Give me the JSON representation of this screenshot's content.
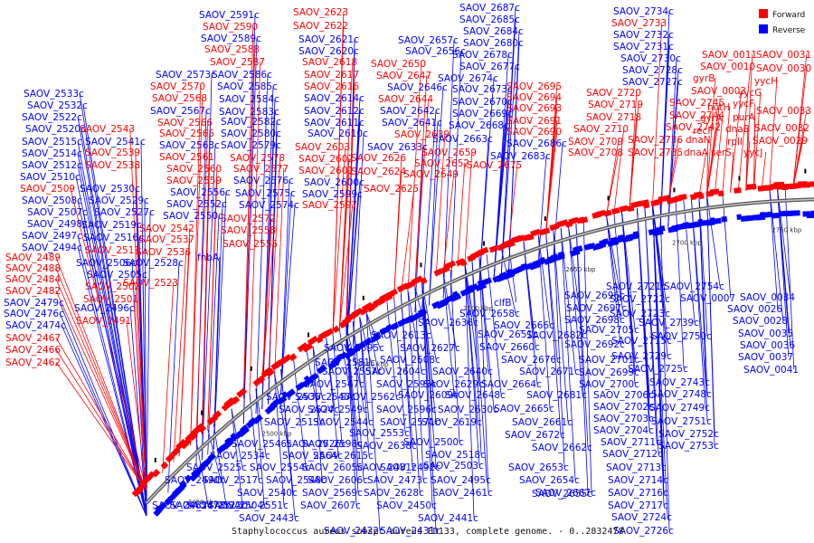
{
  "legend": {
    "forward_label": "Forward",
    "reverse_label": "Reverse",
    "forward_color": "#ff0000",
    "reverse_color": "#0000ff"
  },
  "caption": "Staphylococcus aureus subsp. aureus ED133, complete genome. - 0..2832478",
  "colors": {
    "backbone": "#999999",
    "label_forward": "#ff0000",
    "label_reverse": "#0000ff",
    "marker": "#000000"
  },
  "ticks": [
    "2450 kbp",
    "2500 kbp",
    "2550 kbp",
    "2600 kbp",
    "2650 kbp",
    "2700 kbp",
    "2750 kbp",
    "2800 kbp",
    "50 kbp"
  ],
  "labels": [
    {
      "text": "SAOV_2533c",
      "s": "r"
    },
    {
      "text": "SAOV_2532c",
      "s": "r"
    },
    {
      "text": "SAOV_2522c",
      "s": "r"
    },
    {
      "text": "SAOV_2520c",
      "s": "r"
    },
    {
      "text": "SAOV_2515c",
      "s": "r"
    },
    {
      "text": "SAOV_2514c",
      "s": "r"
    },
    {
      "text": "SAOV_2512c",
      "s": "r"
    },
    {
      "text": "SAOV_2510c",
      "s": "r"
    },
    {
      "text": "SAOV_2509",
      "s": "f"
    },
    {
      "text": "SAOV_2508c",
      "s": "r"
    },
    {
      "text": "SAOV_2507c",
      "s": "r"
    },
    {
      "text": "SAOV_2498c",
      "s": "r"
    },
    {
      "text": "SAOV_2497c",
      "s": "r"
    },
    {
      "text": "SAOV_2494c",
      "s": "r"
    },
    {
      "text": "SAOV_2489",
      "s": "f"
    },
    {
      "text": "SAOV_2488",
      "s": "f"
    },
    {
      "text": "SAOV_2484",
      "s": "f"
    },
    {
      "text": "SAOV_2482",
      "s": "f"
    },
    {
      "text": "SAOV_2479c",
      "s": "r"
    },
    {
      "text": "SAOV_2476c",
      "s": "r"
    },
    {
      "text": "SAOV_2474c",
      "s": "r"
    },
    {
      "text": "SAOV_2467",
      "s": "f"
    },
    {
      "text": "SAOV_2466",
      "s": "f"
    },
    {
      "text": "SAOV_2462",
      "s": "f"
    },
    {
      "text": "SAOV_2543",
      "s": "f"
    },
    {
      "text": "SAOV_2541c",
      "s": "r"
    },
    {
      "text": "SAOV_2539",
      "s": "f"
    },
    {
      "text": "SAOV_2538",
      "s": "f"
    },
    {
      "text": "SAOV_2530c",
      "s": "r"
    },
    {
      "text": "SAOV_2529c",
      "s": "r"
    },
    {
      "text": "SAOV_2527c",
      "s": "r"
    },
    {
      "text": "SAOV_2519c",
      "s": "r"
    },
    {
      "text": "SAOV_2516c",
      "s": "r"
    },
    {
      "text": "SAOV_2511",
      "s": "f"
    },
    {
      "text": "SAOV_2506c",
      "s": "r"
    },
    {
      "text": "SAOV_2505c",
      "s": "r"
    },
    {
      "text": "SAOV_2502",
      "s": "f"
    },
    {
      "text": "SAOV_2501",
      "s": "f"
    },
    {
      "text": "SAOV_2496c",
      "s": "r"
    },
    {
      "text": "SAOV_2491",
      "s": "f"
    },
    {
      "text": "SAOV_2542",
      "s": "f"
    },
    {
      "text": "SAOV_2537",
      "s": "f"
    },
    {
      "text": "SAOV_2536",
      "s": "f"
    },
    {
      "text": "SAOV_2528c",
      "s": "r"
    },
    {
      "text": "SAOV_2523",
      "s": "f"
    },
    {
      "text": "SAOV_2591c",
      "s": "r"
    },
    {
      "text": "SAOV_2590",
      "s": "f"
    },
    {
      "text": "SAOV_2589c",
      "s": "r"
    },
    {
      "text": "SAOV_2588",
      "s": "f"
    },
    {
      "text": "SAOV_2587",
      "s": "f"
    },
    {
      "text": "SAOV_2586c",
      "s": "r"
    },
    {
      "text": "SAOV_2585c",
      "s": "r"
    },
    {
      "text": "SAOV_2584c",
      "s": "r"
    },
    {
      "text": "SAOV_2583c",
      "s": "r"
    },
    {
      "text": "SAOV_2582c",
      "s": "r"
    },
    {
      "text": "SAOV_2580c",
      "s": "r"
    },
    {
      "text": "SAOV_2579c",
      "s": "r"
    },
    {
      "text": "SAOV_2578",
      "s": "f"
    },
    {
      "text": "SAOV_2577",
      "s": "f"
    },
    {
      "text": "SAOV_2576c",
      "s": "r"
    },
    {
      "text": "SAOV_2575c",
      "s": "r"
    },
    {
      "text": "SAOV_2574c",
      "s": "r"
    },
    {
      "text": "SAOV_2572",
      "s": "f"
    },
    {
      "text": "SAOV_2573c",
      "s": "r"
    },
    {
      "text": "SAOV_2570",
      "s": "f"
    },
    {
      "text": "SAOV_2568",
      "s": "f"
    },
    {
      "text": "SAOV_2567c",
      "s": "r"
    },
    {
      "text": "SAOV_2566",
      "s": "f"
    },
    {
      "text": "SAOV_2565",
      "s": "f"
    },
    {
      "text": "SAOV_2563c",
      "s": "r"
    },
    {
      "text": "SAOV_2561",
      "s": "f"
    },
    {
      "text": "SAOV_2560",
      "s": "f"
    },
    {
      "text": "SAOV_2559",
      "s": "f"
    },
    {
      "text": "SAOV_2556c",
      "s": "r"
    },
    {
      "text": "SAOV_2552c",
      "s": "r"
    },
    {
      "text": "SAOV_2550c",
      "s": "r"
    },
    {
      "text": "SAOV_2558",
      "s": "f"
    },
    {
      "text": "SAOV_2555",
      "s": "f"
    },
    {
      "text": "fnbA",
      "s": "r"
    },
    {
      "text": "SAOV_2623",
      "s": "f"
    },
    {
      "text": "SAOV_2622",
      "s": "f"
    },
    {
      "text": "SAOV_2621c",
      "s": "r"
    },
    {
      "text": "SAOV_2620c",
      "s": "r"
    },
    {
      "text": "SAOV_2618",
      "s": "f"
    },
    {
      "text": "SAOV_2617",
      "s": "f"
    },
    {
      "text": "SAOV_2616",
      "s": "f"
    },
    {
      "text": "SAOV_2614c",
      "s": "r"
    },
    {
      "text": "SAOV_2612c",
      "s": "r"
    },
    {
      "text": "SAOV_2611c",
      "s": "r"
    },
    {
      "text": "SAOV_2610c",
      "s": "r"
    },
    {
      "text": "SAOV_2603",
      "s": "f"
    },
    {
      "text": "SAOV_2602",
      "s": "f"
    },
    {
      "text": "SAOV_2601",
      "s": "f"
    },
    {
      "text": "SAOV_2600c",
      "s": "r"
    },
    {
      "text": "SAOV_2599c",
      "s": "r"
    },
    {
      "text": "SAOV_2597",
      "s": "f"
    },
    {
      "text": "SAOV_2657c",
      "s": "r"
    },
    {
      "text": "SAOV_2656c",
      "s": "r"
    },
    {
      "text": "SAOV_2650",
      "s": "f"
    },
    {
      "text": "SAOV_2647",
      "s": "f"
    },
    {
      "text": "SAOV_2646c",
      "s": "r"
    },
    {
      "text": "SAOV_2644",
      "s": "f"
    },
    {
      "text": "SAOV_2642c",
      "s": "r"
    },
    {
      "text": "SAOV_2641c",
      "s": "r"
    },
    {
      "text": "SAOV_2639",
      "s": "f"
    },
    {
      "text": "SAOV_2633c",
      "s": "r"
    },
    {
      "text": "SAOV_2626",
      "s": "f"
    },
    {
      "text": "SAOV_2624",
      "s": "f"
    },
    {
      "text": "SAOV_2625",
      "s": "f"
    },
    {
      "text": "SAOV_2687c",
      "s": "r"
    },
    {
      "text": "SAOV_2685c",
      "s": "r"
    },
    {
      "text": "SAOV_2684c",
      "s": "r"
    },
    {
      "text": "SAOV_2680c",
      "s": "r"
    },
    {
      "text": "SAOV_2678c",
      "s": "r"
    },
    {
      "text": "SAOV_2677c",
      "s": "r"
    },
    {
      "text": "SAOV_2674c",
      "s": "r"
    },
    {
      "text": "SAOV_2673c",
      "s": "r"
    },
    {
      "text": "SAOV_2670c",
      "s": "r"
    },
    {
      "text": "SAOV_2669c",
      "s": "r"
    },
    {
      "text": "SAOV_2668c",
      "s": "r"
    },
    {
      "text": "SAOV_2663c",
      "s": "r"
    },
    {
      "text": "SAOV_2659",
      "s": "f"
    },
    {
      "text": "SAOV_2652",
      "s": "f"
    },
    {
      "text": "SAOV_2649",
      "s": "f"
    },
    {
      "text": "SAOV_2675",
      "s": "f"
    },
    {
      "text": "SAOV_2695",
      "s": "f"
    },
    {
      "text": "SAOV_2694",
      "s": "f"
    },
    {
      "text": "SAOV_2693",
      "s": "f"
    },
    {
      "text": "SAOV_2691",
      "s": "f"
    },
    {
      "text": "SAOV_2690",
      "s": "f"
    },
    {
      "text": "SAOV_2686c",
      "s": "r"
    },
    {
      "text": "SAOV_2683c",
      "s": "r"
    },
    {
      "text": "SAOV_2734c",
      "s": "r"
    },
    {
      "text": "SAOV_2733",
      "s": "f"
    },
    {
      "text": "SAOV_2732c",
      "s": "r"
    },
    {
      "text": "SAOV_2731c",
      "s": "r"
    },
    {
      "text": "SAOV_2730c",
      "s": "r"
    },
    {
      "text": "SAOV_2728c",
      "s": "r"
    },
    {
      "text": "SAOV_2727c",
      "s": "r"
    },
    {
      "text": "SAOV_2720",
      "s": "f"
    },
    {
      "text": "SAOV_2719",
      "s": "f"
    },
    {
      "text": "SAOV_2718",
      "s": "f"
    },
    {
      "text": "SAOV_2710",
      "s": "f"
    },
    {
      "text": "SAOV_2709",
      "s": "f"
    },
    {
      "text": "SAOV_2708",
      "s": "f"
    },
    {
      "text": "SAOV_2745",
      "s": "f"
    },
    {
      "text": "SAOV_2744",
      "s": "f"
    },
    {
      "text": "SAOV_2742",
      "s": "f"
    },
    {
      "text": "SAOV_2736",
      "s": "f"
    },
    {
      "text": "SAOV_2735",
      "s": "f"
    },
    {
      "text": "SAOV_0011",
      "s": "f"
    },
    {
      "text": "SAOV_0010",
      "s": "f"
    },
    {
      "text": "gyrB",
      "s": "f"
    },
    {
      "text": "SAOV_0003",
      "s": "f"
    },
    {
      "text": "hutH",
      "s": "f"
    },
    {
      "text": "recF",
      "s": "f"
    },
    {
      "text": "gyrA",
      "s": "f"
    },
    {
      "text": "dnaN",
      "s": "f"
    },
    {
      "text": "dnaA",
      "s": "f"
    },
    {
      "text": "serS",
      "s": "f"
    },
    {
      "text": "SAOV_0031",
      "s": "f"
    },
    {
      "text": "SAOV_0030",
      "s": "f"
    },
    {
      "text": "yycH",
      "s": "f"
    },
    {
      "text": "yycG",
      "s": "f"
    },
    {
      "text": "yycF",
      "s": "f"
    },
    {
      "text": "purA",
      "s": "f"
    },
    {
      "text": "dnaB",
      "s": "f"
    },
    {
      "text": "rplI",
      "s": "f"
    },
    {
      "text": "yycJ",
      "s": "f"
    },
    {
      "text": "SAOV_0033",
      "s": "f"
    },
    {
      "text": "SAOV_0032",
      "s": "f"
    },
    {
      "text": "SAOV_0029",
      "s": "f"
    },
    {
      "text": "SAOV_2696c",
      "s": "r"
    },
    {
      "text": "SAOV_2697c",
      "s": "r"
    },
    {
      "text": "SAOV_2698c",
      "s": "r"
    },
    {
      "text": "SAOV_2692c",
      "s": "r"
    },
    {
      "text": "SAOV_2682c",
      "s": "r"
    },
    {
      "text": "SAOV_2666c",
      "s": "r"
    },
    {
      "text": "SAOV_2660c",
      "s": "r"
    },
    {
      "text": "SAOV_2658c",
      "s": "r"
    },
    {
      "text": "SAOV_2651c",
      "s": "r"
    },
    {
      "text": "SAOV_2676c",
      "s": "r"
    },
    {
      "text": "SAOV_2671c",
      "s": "r"
    },
    {
      "text": "SAOV_2664c",
      "s": "r"
    },
    {
      "text": "SAOV_2681c",
      "s": "r"
    },
    {
      "text": "SAOV_2665c",
      "s": "r"
    },
    {
      "text": "SAOV_2661c",
      "s": "r"
    },
    {
      "text": "SAOV_2672c",
      "s": "r"
    },
    {
      "text": "SAOV_2662c",
      "s": "r"
    },
    {
      "text": "SAOV_2653c",
      "s": "r"
    },
    {
      "text": "SAOV_2654c",
      "s": "r"
    },
    {
      "text": "SAOV_2655c",
      "s": "r"
    },
    {
      "text": "SAOV_2667c",
      "s": "r"
    },
    {
      "text": "clfB",
      "s": "r"
    },
    {
      "text": "SAOV_2705c",
      "s": "r"
    },
    {
      "text": "SAOV_2701c",
      "s": "r"
    },
    {
      "text": "SAOV_2699c",
      "s": "r"
    },
    {
      "text": "SAOV_2700c",
      "s": "r"
    },
    {
      "text": "SAOV_2706c",
      "s": "r"
    },
    {
      "text": "SAOV_2702c",
      "s": "r"
    },
    {
      "text": "SAOV_2703c",
      "s": "r"
    },
    {
      "text": "SAOV_2704c",
      "s": "r"
    },
    {
      "text": "SAOV_2711c",
      "s": "r"
    },
    {
      "text": "SAOV_2712c",
      "s": "r"
    },
    {
      "text": "SAOV_2713c",
      "s": "r"
    },
    {
      "text": "SAOV_2714c",
      "s": "r"
    },
    {
      "text": "SAOV_2716c",
      "s": "r"
    },
    {
      "text": "SAOV_2717c",
      "s": "r"
    },
    {
      "text": "SAOV_2724c",
      "s": "r"
    },
    {
      "text": "SAOV_2726c",
      "s": "r"
    },
    {
      "text": "SAOV_2721c",
      "s": "r"
    },
    {
      "text": "SAOV_2722c",
      "s": "r"
    },
    {
      "text": "SAOV_2723c",
      "s": "r"
    },
    {
      "text": "SAOV_2715c",
      "s": "r"
    },
    {
      "text": "SAOV_2729c",
      "s": "r"
    },
    {
      "text": "SAOV_2725c",
      "s": "r"
    },
    {
      "text": "SAOV_2743c",
      "s": "r"
    },
    {
      "text": "SAOV_2748c",
      "s": "r"
    },
    {
      "text": "SAOV_2749c",
      "s": "r"
    },
    {
      "text": "SAOV_2751c",
      "s": "r"
    },
    {
      "text": "SAOV_2752c",
      "s": "r"
    },
    {
      "text": "SAOV_2753c",
      "s": "r"
    },
    {
      "text": "SAOV_2754c",
      "s": "r"
    },
    {
      "text": "SAOV_2739c",
      "s": "r"
    },
    {
      "text": "SAOV_2750c",
      "s": "r"
    },
    {
      "text": "SAOV_0007",
      "s": "r"
    },
    {
      "text": "SAOV_0034",
      "s": "r"
    },
    {
      "text": "SAOV_0026",
      "s": "r"
    },
    {
      "text": "SAOV_0028",
      "s": "r"
    },
    {
      "text": "SAOV_0035",
      "s": "r"
    },
    {
      "text": "SAOV_0036",
      "s": "r"
    },
    {
      "text": "SAOV_0037",
      "s": "r"
    },
    {
      "text": "SAOV_0041",
      "s": "r"
    },
    {
      "text": "SAOV_2636c",
      "s": "r"
    },
    {
      "text": "SAOV_2627c",
      "s": "r"
    },
    {
      "text": "SAOV_2613c",
      "s": "r"
    },
    {
      "text": "SAOV_2608c",
      "s": "r"
    },
    {
      "text": "SAOV_2604c",
      "s": "r"
    },
    {
      "text": "SAOV_2595c",
      "s": "r"
    },
    {
      "text": "SAOV_2581c",
      "s": "r"
    },
    {
      "text": "SAOV_2557c",
      "s": "r"
    },
    {
      "text": "SAOV_2547c",
      "s": "r"
    },
    {
      "text": "SAOV_2545c",
      "s": "r"
    },
    {
      "text": "SAOV_2640c",
      "s": "r"
    },
    {
      "text": "SAOV_2629c",
      "s": "r"
    },
    {
      "text": "SAOV_2593c",
      "s": "r"
    },
    {
      "text": "SAOV_2609c",
      "s": "r"
    },
    {
      "text": "SAOV_2562c",
      "s": "r"
    },
    {
      "text": "SAOV_2535c",
      "s": "r"
    },
    {
      "text": "SAOV_2648c",
      "s": "r"
    },
    {
      "text": "SAOV_2630c",
      "s": "r"
    },
    {
      "text": "SAOV_2596c",
      "s": "r"
    },
    {
      "text": "SAOV_2549c",
      "s": "r"
    },
    {
      "text": "SAOV_2524c",
      "s": "r"
    },
    {
      "text": "SAOV_2571c",
      "s": "r"
    },
    {
      "text": "SAOV_2544c",
      "s": "r"
    },
    {
      "text": "SAOV_2513c",
      "s": "r"
    },
    {
      "text": "SAOV_2619c",
      "s": "r"
    },
    {
      "text": "SAOV_2553c",
      "s": "r"
    },
    {
      "text": "SAOV_2526c",
      "s": "r"
    },
    {
      "text": "SAOV_2500c",
      "s": "r"
    },
    {
      "text": "SAOV_2638c",
      "s": "r"
    },
    {
      "text": "SAOV_2598c",
      "s": "r"
    },
    {
      "text": "SAOV_2546c",
      "s": "r"
    },
    {
      "text": "SAOV_2518c",
      "s": "r"
    },
    {
      "text": "SAOV_2492c",
      "s": "r"
    },
    {
      "text": "SAOV_2615c",
      "s": "r"
    },
    {
      "text": "SAOV_2564c",
      "s": "r"
    },
    {
      "text": "SAOV_2534c",
      "s": "r"
    },
    {
      "text": "SAOV_2503c",
      "s": "r"
    },
    {
      "text": "SAOV_2481c",
      "s": "r"
    },
    {
      "text": "SAOV_2605c",
      "s": "r"
    },
    {
      "text": "SAOV_2554c",
      "s": "r"
    },
    {
      "text": "SAOV_2525c",
      "s": "r"
    },
    {
      "text": "SAOV_2495c",
      "s": "r"
    },
    {
      "text": "SAOV_2473c",
      "s": "r"
    },
    {
      "text": "SAOV_2606c",
      "s": "r"
    },
    {
      "text": "SAOV_2548c",
      "s": "r"
    },
    {
      "text": "SAOV_2517c",
      "s": "r"
    },
    {
      "text": "SAOV_2490c",
      "s": "r"
    },
    {
      "text": "SAOV_2461c",
      "s": "r"
    },
    {
      "text": "SAOV_2628c",
      "s": "r"
    },
    {
      "text": "SAOV_2569c",
      "s": "r"
    },
    {
      "text": "SAOV_2540c",
      "s": "r"
    },
    {
      "text": "SAOV_2504c",
      "s": "r"
    },
    {
      "text": "SAOV_2478c",
      "s": "r"
    },
    {
      "text": "SAOV_2450c",
      "s": "r"
    },
    {
      "text": "SAOV_2607c",
      "s": "r"
    },
    {
      "text": "SAOV_2551c",
      "s": "r"
    },
    {
      "text": "SAOV_2522c",
      "s": "r"
    },
    {
      "text": "SAOV_2465c",
      "s": "r"
    },
    {
      "text": "SAOV_2441c",
      "s": "r"
    },
    {
      "text": "SAOV_2431c",
      "s": "r"
    },
    {
      "text": "SAOV_2422c",
      "s": "r"
    },
    {
      "text": "SAOV_2443c",
      "s": "r"
    }
  ]
}
